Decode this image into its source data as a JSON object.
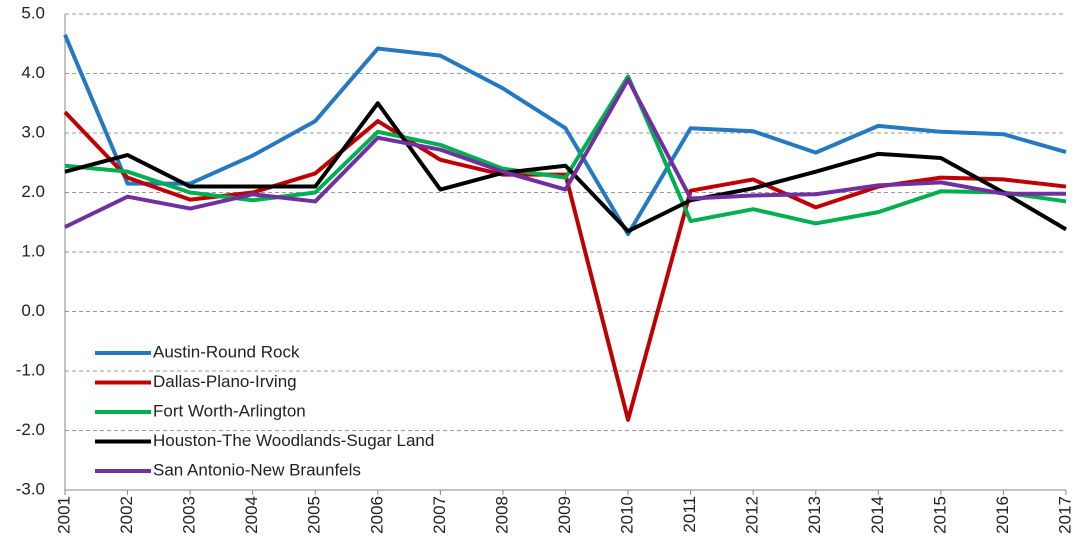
{
  "chart_data": {
    "type": "line",
    "categories": [
      "2001",
      "2002",
      "2003",
      "2004",
      "2005",
      "2006",
      "2007",
      "2008",
      "2009",
      "2010",
      "2011",
      "2012",
      "2013",
      "2014",
      "2015",
      "2016",
      "2017"
    ],
    "series": [
      {
        "name": "Austin-Round Rock",
        "color": "#2479c1",
        "values": [
          4.65,
          2.15,
          2.15,
          2.62,
          3.2,
          4.42,
          4.3,
          3.75,
          3.08,
          1.3,
          3.08,
          3.03,
          2.67,
          3.12,
          3.02,
          2.98,
          2.68
        ]
      },
      {
        "name": "Dallas-Plano-Irving",
        "color": "#c00000",
        "values": [
          3.35,
          2.25,
          1.88,
          2.0,
          2.32,
          3.2,
          2.55,
          2.3,
          2.3,
          -1.82,
          2.03,
          2.22,
          1.75,
          2.1,
          2.25,
          2.22,
          2.1
        ]
      },
      {
        "name": "Fort Worth-Arlington",
        "color": "#00b050",
        "values": [
          2.45,
          2.35,
          2.0,
          1.87,
          2.0,
          3.02,
          2.8,
          2.4,
          2.25,
          3.95,
          1.52,
          1.72,
          1.48,
          1.67,
          2.02,
          2.0,
          1.85
        ]
      },
      {
        "name": "Houston-The Woodlands-Sugar Land",
        "color": "#000000",
        "values": [
          2.35,
          2.63,
          2.1,
          2.1,
          2.1,
          3.5,
          2.05,
          2.33,
          2.45,
          1.35,
          1.87,
          2.07,
          2.35,
          2.65,
          2.58,
          2.0,
          1.38
        ]
      },
      {
        "name": "San Antonio-New Braunfels",
        "color": "#7030a0",
        "values": [
          1.42,
          1.93,
          1.73,
          1.97,
          1.85,
          2.92,
          2.72,
          2.35,
          2.05,
          3.9,
          1.9,
          1.95,
          1.97,
          2.12,
          2.17,
          1.98,
          1.98
        ]
      }
    ],
    "ylim": [
      -3,
      5
    ],
    "yticks": [
      {
        "value": -3,
        "label": "-3.0"
      },
      {
        "value": -2,
        "label": "-2.0"
      },
      {
        "value": -1,
        "label": "-1.0"
      },
      {
        "value": 0,
        "label": "0.0"
      },
      {
        "value": 1,
        "label": "1.0"
      },
      {
        "value": 2,
        "label": "2.0"
      },
      {
        "value": 3,
        "label": "3.0"
      },
      {
        "value": 4,
        "label": "4.0"
      },
      {
        "value": 5,
        "label": "5.0"
      }
    ],
    "grid": true,
    "legend": "lower left"
  }
}
